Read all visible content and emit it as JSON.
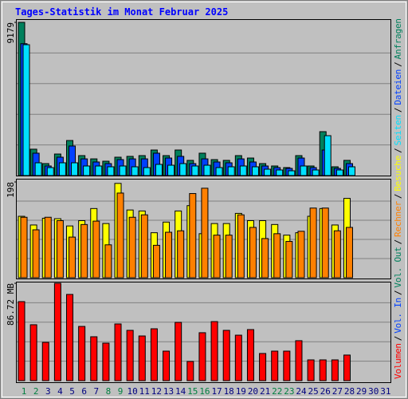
{
  "title": "Tages-Statistik im Monat Februar 2025",
  "legend_separator": "/",
  "chart_data": [
    {
      "type": "bar",
      "ylim": [
        0,
        9179
      ],
      "yticks": [
        9179
      ],
      "series": [
        {
          "name": "Anfragen",
          "color": "#00805C",
          "values": [
            9179,
            1580,
            717,
            1290,
            2100,
            1195,
            1000,
            860,
            1100,
            1150,
            1195,
            1530,
            1195,
            1530,
            910,
            1340,
            956,
            910,
            1195,
            1050,
            717,
            574,
            478,
            1195,
            574,
            2630,
            526,
            910,
            null,
            null,
            null
          ]
        },
        {
          "name": "Dateien",
          "color": "#0040FF",
          "values": [
            7900,
            1340,
            574,
            1100,
            1770,
            1000,
            813,
            717,
            956,
            1000,
            1000,
            1340,
            1050,
            1150,
            717,
            1000,
            813,
            765,
            1000,
            813,
            574,
            478,
            430,
            1050,
            478,
            1530,
            430,
            717,
            null,
            null,
            null
          ]
        },
        {
          "name": "Seiten",
          "color": "#00E0FF",
          "values": [
            7840,
            765,
            478,
            765,
            765,
            574,
            574,
            526,
            574,
            526,
            478,
            670,
            620,
            717,
            574,
            620,
            478,
            526,
            574,
            526,
            382,
            335,
            287,
            574,
            335,
            2390,
            335,
            526,
            null,
            null,
            null
          ]
        }
      ]
    },
    {
      "type": "bar",
      "ylim": [
        0,
        198
      ],
      "yticks": [
        198
      ],
      "series": [
        {
          "name": "Besuche",
          "color": "#FFFF00",
          "values": [
            127,
            109,
            123,
            122,
            107,
            118,
            143,
            112,
            195,
            140,
            138,
            93,
            115,
            138,
            149,
            91,
            112,
            112,
            133,
            118,
            118,
            110,
            88,
            93,
            127,
            143,
            109,
            164,
            null,
            null,
            null
          ]
        },
        {
          "name": "Rechner",
          "color": "#FF8000",
          "values": [
            125,
            99,
            125,
            118,
            84,
            110,
            117,
            68,
            175,
            125,
            130,
            67,
            94,
            97,
            174,
            185,
            88,
            88,
            130,
            104,
            81,
            91,
            75,
            96,
            144,
            144,
            97,
            104,
            null,
            null,
            null
          ]
        }
      ]
    },
    {
      "type": "bar",
      "ylim": [
        0,
        86.72
      ],
      "yticks": [
        {
          "value": 86.72,
          "label": "86.72 MB"
        }
      ],
      "categories": [
        "1",
        "2",
        "3",
        "4",
        "5",
        "6",
        "7",
        "8",
        "9",
        "10",
        "11",
        "12",
        "13",
        "14",
        "15",
        "16",
        "17",
        "18",
        "19",
        "20",
        "21",
        "22",
        "23",
        "24",
        "25",
        "26",
        "27",
        "28",
        "29",
        "30",
        "31"
      ],
      "x_label_colors": [
        "#008040",
        "#008040",
        "#000080",
        "#000080",
        "#000080",
        "#000080",
        "#000080",
        "#008040",
        "#008040",
        "#000080",
        "#000080",
        "#000080",
        "#000080",
        "#000080",
        "#008040",
        "#008040",
        "#000080",
        "#000080",
        "#000080",
        "#000080",
        "#000080",
        "#008040",
        "#008040",
        "#000080",
        "#000080",
        "#000080",
        "#000080",
        "#000080",
        "#000080",
        "#000080",
        "#000080"
      ],
      "series": [
        {
          "name": "Volumen",
          "color": "#FF0000",
          "values": [
            70.4,
            49.8,
            34.1,
            86.72,
            76.8,
            48.3,
            39.1,
            33.4,
            50.5,
            44.8,
            39.8,
            46.2,
            26.3,
            51.9,
            17.1,
            42.7,
            52.6,
            44.8,
            40.5,
            45.5,
            24.2,
            26.3,
            26.3,
            35.6,
            18.5,
            18.5,
            18.5,
            22.8,
            null,
            null,
            null
          ]
        },
        {
          "name": "Vol. In",
          "color": "#0040FF",
          "values": [
            0,
            0,
            0,
            0,
            0,
            0,
            0,
            0,
            0,
            0,
            0,
            0,
            0,
            0,
            0,
            0,
            0,
            0,
            0,
            0,
            0,
            0,
            0,
            0,
            0,
            0,
            0,
            0,
            null,
            null,
            null
          ]
        },
        {
          "name": "Vol. Out",
          "color": "#00805C",
          "values": [
            0,
            0,
            0,
            0,
            0,
            0,
            0,
            0,
            0,
            0,
            0,
            0,
            0,
            0,
            0,
            0,
            0,
            0,
            0,
            0,
            0,
            0,
            0,
            0,
            0,
            0,
            0,
            0,
            null,
            null,
            null
          ]
        }
      ]
    }
  ]
}
